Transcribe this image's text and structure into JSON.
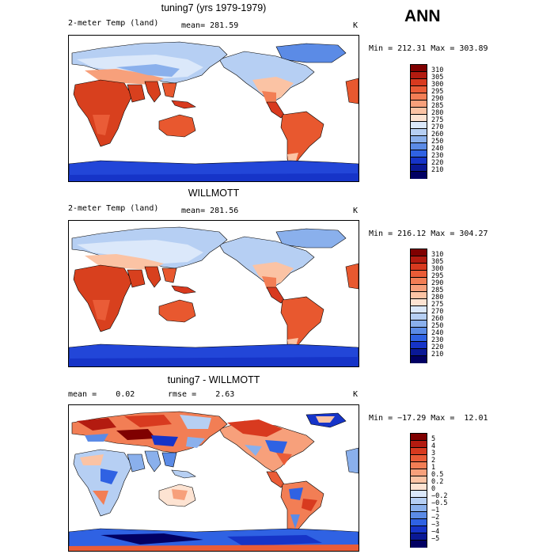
{
  "season": "ANN",
  "panels": [
    {
      "title": "tuning7 (yrs 1979-1979)",
      "left_label": "2-meter Temp (land)",
      "center_label": "mean= 281.59",
      "units": "K",
      "minmax": "Min = 212.31 Max = 303.89",
      "levels": [
        "310",
        "305",
        "300",
        "295",
        "290",
        "285",
        "280",
        "275",
        "270",
        "260",
        "250",
        "240",
        "230",
        "220",
        "210"
      ]
    },
    {
      "title": "WILLMOTT",
      "left_label": "2-meter Temp (land)",
      "center_label": "mean= 281.56",
      "units": "K",
      "minmax": "Min = 216.12 Max = 304.27",
      "levels": [
        "310",
        "305",
        "300",
        "295",
        "290",
        "285",
        "280",
        "275",
        "270",
        "260",
        "250",
        "240",
        "230",
        "220",
        "210"
      ]
    },
    {
      "title": "tuning7 - WILLMOTT",
      "left_label": "mean =    0.02",
      "center_label": "rmse =    2.63",
      "units": "K",
      "minmax": "Min = −17.29 Max =  12.01",
      "levels": [
        "5",
        "4",
        "3",
        "2",
        "1",
        "0.5",
        "0.2",
        "0",
        "−0.2",
        "−0.5",
        "−1",
        "−2",
        "−3",
        "−4",
        "−5"
      ]
    }
  ],
  "colors": {
    "abs_scale": [
      "#7f0000",
      "#b31b10",
      "#d83a1f",
      "#ea5c37",
      "#f27e55",
      "#f7a07b",
      "#fbc3a4",
      "#fde3d2",
      "#dbe8fa",
      "#b6cff3",
      "#8ab0ec",
      "#5b8be6",
      "#2f62e3",
      "#1634c8",
      "#0a1996",
      "#010063"
    ],
    "diff_scale": [
      "#7f0000",
      "#b31b10",
      "#d83a1f",
      "#ea5c37",
      "#f27e55",
      "#f7a07b",
      "#fbc3a4",
      "#fde3d2",
      "#dbe8fa",
      "#b6cff3",
      "#8ab0ec",
      "#5b8be6",
      "#2f62e3",
      "#1634c8",
      "#0a1996",
      "#010063"
    ],
    "land_warm": "#e8582f",
    "land_hot": "#d8401e",
    "land_mild": "#f7a17e",
    "land_cool": "#cfdcf6",
    "land_cold": "#8ab0ec",
    "ice": "#2246d8"
  }
}
